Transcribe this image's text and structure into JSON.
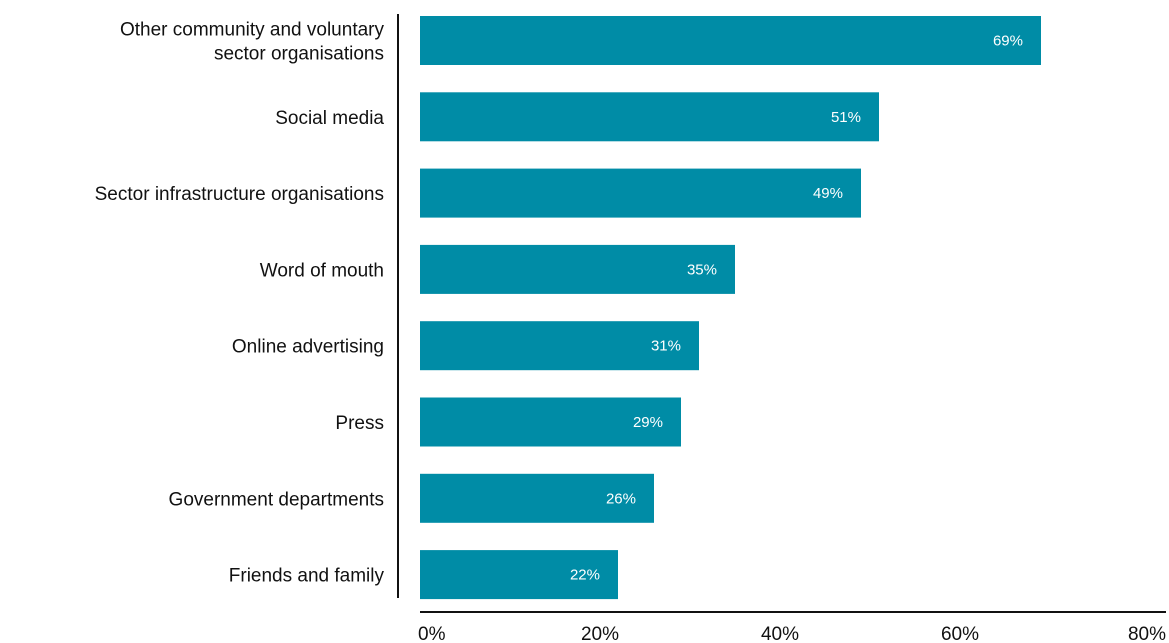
{
  "chart_data": {
    "type": "bar",
    "orientation": "horizontal",
    "categories": [
      [
        "Other community and voluntary",
        "sector organisations"
      ],
      [
        "Social media"
      ],
      [
        "Sector infrastructure organisations"
      ],
      [
        "Word of mouth"
      ],
      [
        "Online advertising"
      ],
      [
        "Press"
      ],
      [
        "Government departments"
      ],
      [
        "Friends and family"
      ]
    ],
    "values": [
      69,
      51,
      49,
      35,
      31,
      29,
      26,
      22
    ],
    "value_labels": [
      "69%",
      "51%",
      "49%",
      "35%",
      "31%",
      "29%",
      "26%",
      "22%"
    ],
    "xlim": [
      0,
      80
    ],
    "xticks": [
      0,
      20,
      40,
      60,
      80
    ],
    "xtick_labels": [
      "0%",
      "20%",
      "40%",
      "60%",
      "80%"
    ],
    "title": "",
    "xlabel": "",
    "ylabel": "",
    "grid": false,
    "bar_color": "#008ca6",
    "value_label_color": "#ffffff",
    "axis_color": "#111111"
  }
}
